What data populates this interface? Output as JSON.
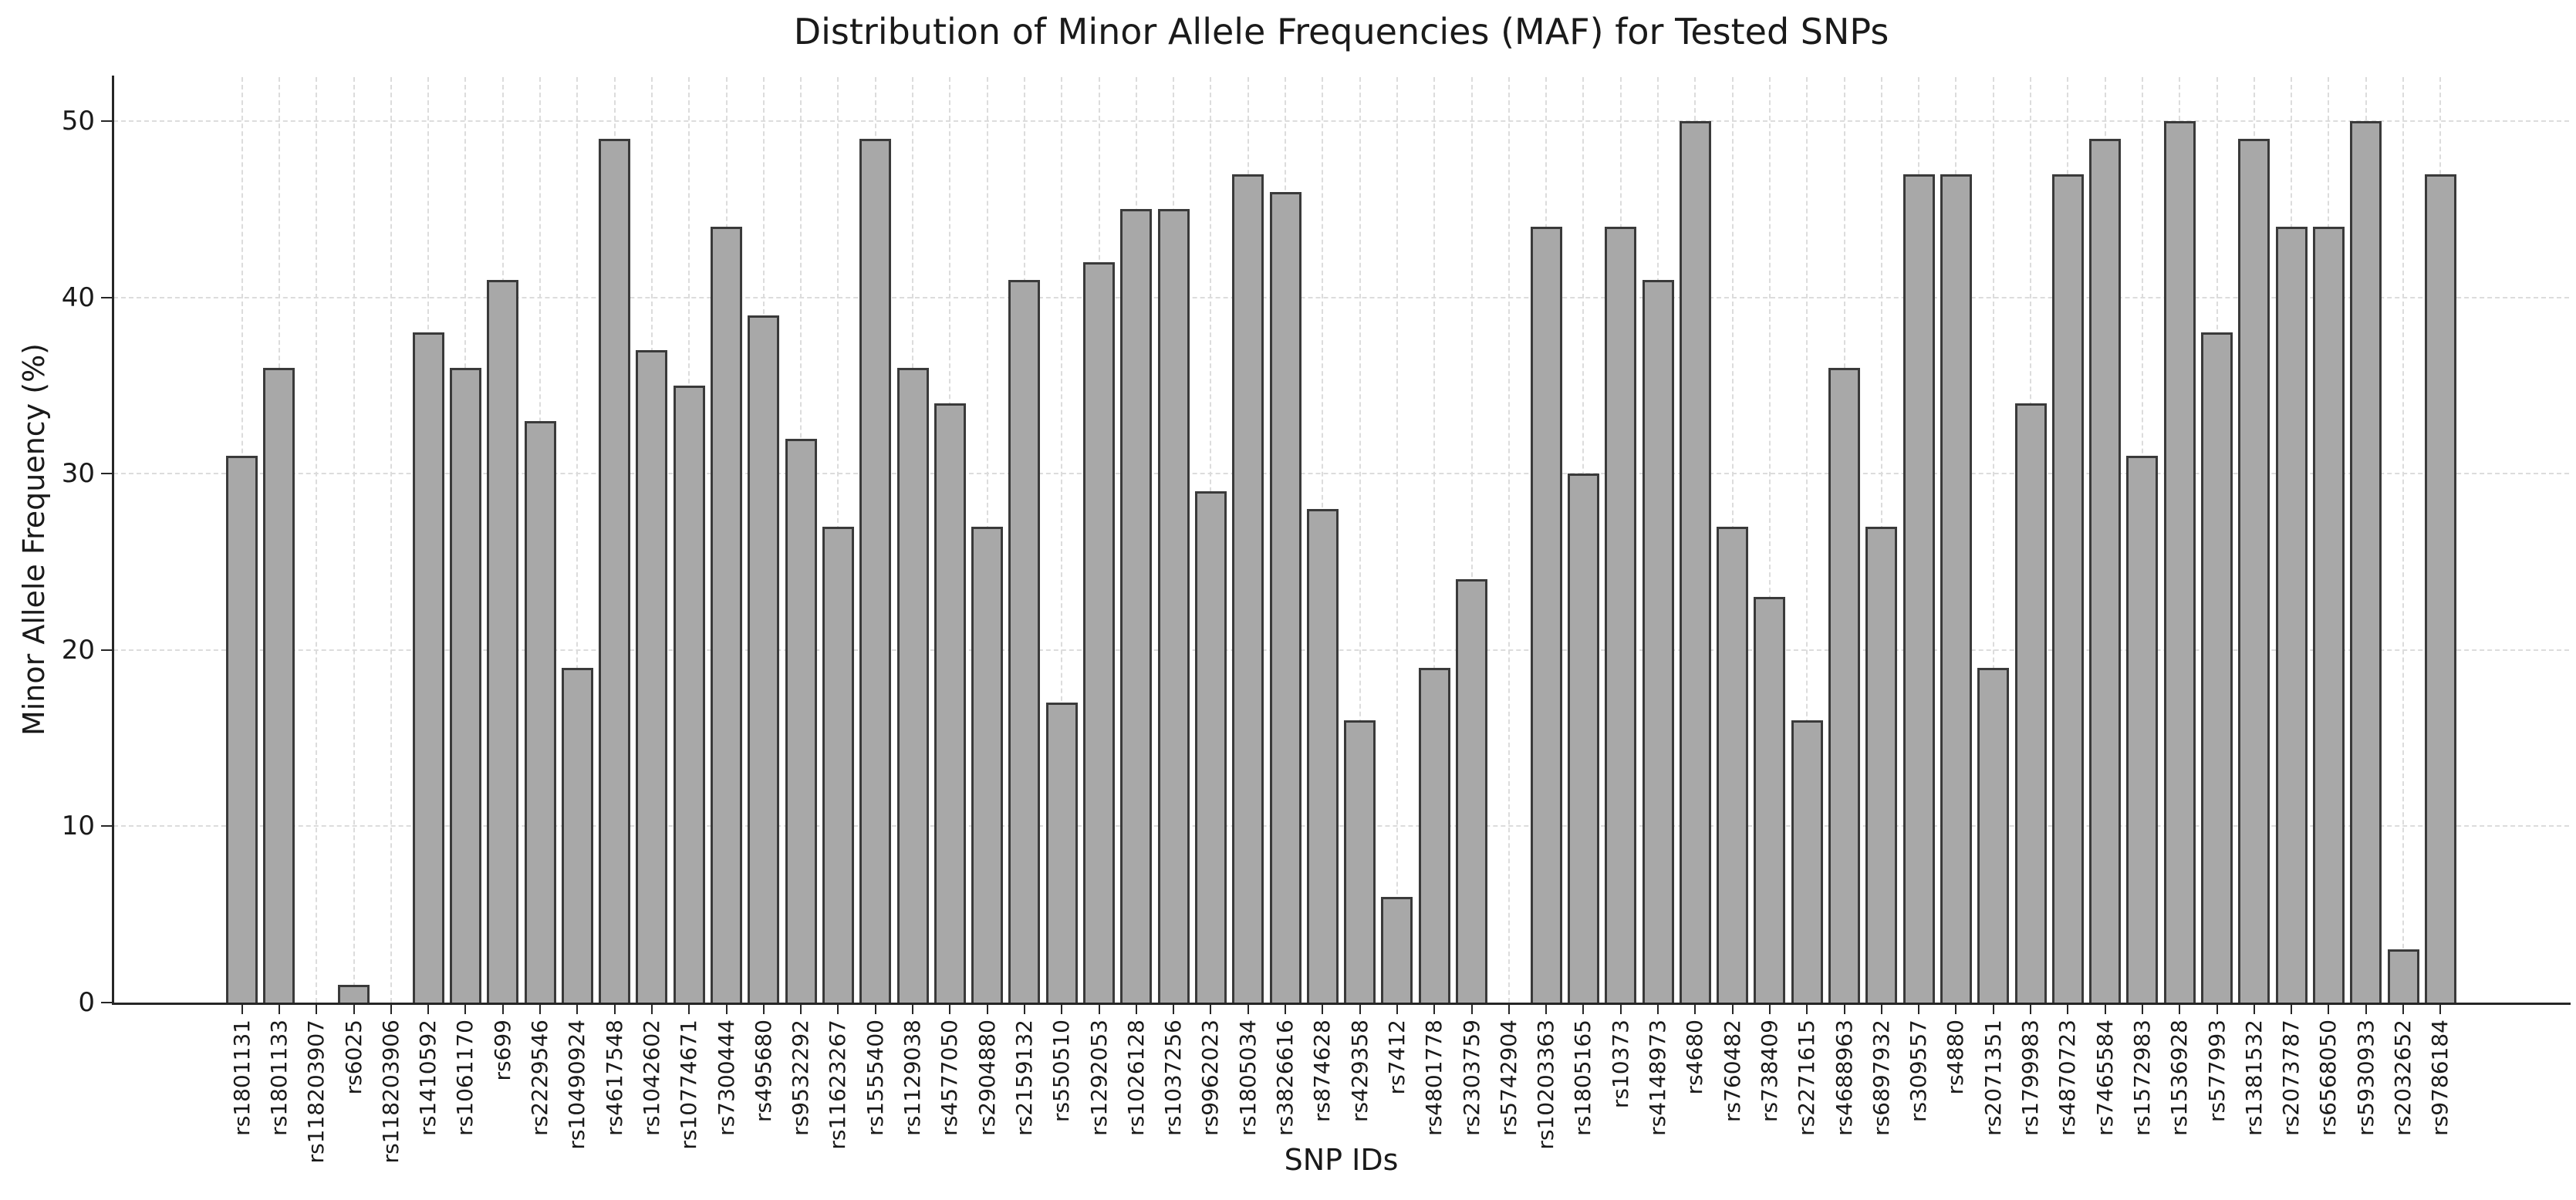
{
  "chart_data": {
    "type": "bar",
    "title": "Distribution of Minor Allele Frequencies (MAF) for Tested SNPs",
    "xlabel": "SNP IDs",
    "ylabel": "Minor Allele Frequency (%)",
    "ylim": [
      0,
      52.5
    ],
    "yticks": [
      0,
      10,
      20,
      30,
      40,
      50
    ],
    "grid": "both-dashed",
    "legend": "none",
    "bar_fill_color": "#a8a8a8",
    "bar_edge_color": "#3a3a3a",
    "categories": [
      "rs1801131",
      "rs1801133",
      "rs118203907",
      "rs6025",
      "rs118203906",
      "rs1410592",
      "rs1061170",
      "rs699",
      "rs2229546",
      "rs10490924",
      "rs4617548",
      "rs1042602",
      "rs10774671",
      "rs7300444",
      "rs495680",
      "rs9532292",
      "rs11623267",
      "rs1555400",
      "rs1129038",
      "rs4577050",
      "rs2904880",
      "rs2159132",
      "rs550510",
      "rs1292053",
      "rs1026128",
      "rs1037256",
      "rs9962023",
      "rs1805034",
      "rs3826616",
      "rs874628",
      "rs429358",
      "rs7412",
      "rs4801778",
      "rs2303759",
      "rs5742904",
      "rs10203363",
      "rs1805165",
      "rs10373",
      "rs4148973",
      "rs4680",
      "rs760482",
      "rs738409",
      "rs2271615",
      "rs4688963",
      "rs6897932",
      "rs309557",
      "rs4880",
      "rs2071351",
      "rs1799983",
      "rs4870723",
      "rs7465584",
      "rs1572983",
      "rs1536928",
      "rs577993",
      "rs1381532",
      "rs2073787",
      "rs6568050",
      "rs5930933",
      "rs2032652",
      "rs9786184"
    ],
    "values": [
      31,
      36,
      0,
      1,
      0,
      38,
      36,
      41,
      33,
      19,
      49,
      37,
      35,
      44,
      39,
      32,
      27,
      49,
      36,
      34,
      27,
      41,
      17,
      42,
      45,
      45,
      29,
      47,
      46,
      28,
      16,
      6,
      19,
      24,
      0,
      44,
      30,
      44,
      41,
      50,
      27,
      23,
      16,
      36,
      27,
      47,
      47,
      19,
      34,
      47,
      49,
      31,
      50,
      38,
      49,
      44,
      44,
      50,
      3,
      47
    ]
  }
}
